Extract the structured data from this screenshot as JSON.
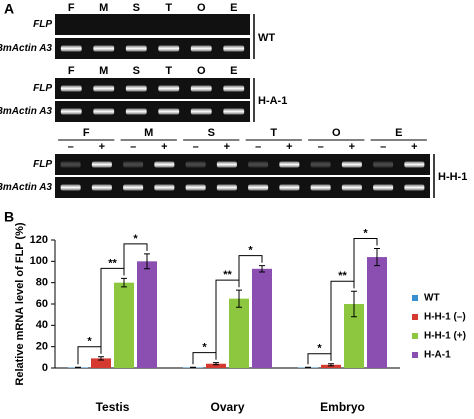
{
  "panel_a": {
    "label": "A",
    "gels": [
      {
        "lanes": [
          "F",
          "M",
          "S",
          "T",
          "O",
          "E"
        ],
        "rows": [
          "FLP",
          "BmActin A3"
        ],
        "group": "WT"
      },
      {
        "lanes": [
          "F",
          "M",
          "S",
          "T",
          "O",
          "E"
        ],
        "rows": [
          "FLP",
          "BmActin A3"
        ],
        "group": "H-A-1"
      },
      {
        "lanes": [
          "F",
          "M",
          "S",
          "T",
          "O",
          "E"
        ],
        "conditions": [
          "–",
          "+"
        ],
        "rows": [
          "FLP",
          "BmActin A3"
        ],
        "group": "H-H-1"
      }
    ]
  },
  "chart_data": {
    "type": "bar",
    "label": "B",
    "y_label": "Relative mRNA level of FLP (%)",
    "categories": [
      "Testis",
      "Ovary",
      "Embryo"
    ],
    "series": [
      {
        "name": "WT",
        "color": "#3a8fd0",
        "values": [
          0.5,
          0.5,
          0.5
        ],
        "errors": [
          0.2,
          0.2,
          0.2
        ]
      },
      {
        "name": "H-H-1 (–)",
        "color": "#d43a2f",
        "values": [
          9,
          4,
          3
        ],
        "errors": [
          1.5,
          1,
          1
        ]
      },
      {
        "name": "H-H-1 (+)",
        "color": "#8dc63f",
        "values": [
          80,
          65,
          60
        ],
        "errors": [
          4,
          8,
          12
        ]
      },
      {
        "name": "H-A-1",
        "color": "#8a4fb0",
        "values": [
          100,
          93,
          104
        ],
        "errors": [
          7,
          3,
          8
        ]
      }
    ],
    "annotations": [
      [
        "*",
        "**",
        "*"
      ],
      [
        "*",
        "**",
        "*"
      ],
      [
        "*",
        "**",
        "*"
      ]
    ],
    "ylim": [
      0,
      120
    ],
    "yticks": [
      0,
      20,
      40,
      60,
      80,
      100,
      120
    ],
    "legend": "right"
  }
}
